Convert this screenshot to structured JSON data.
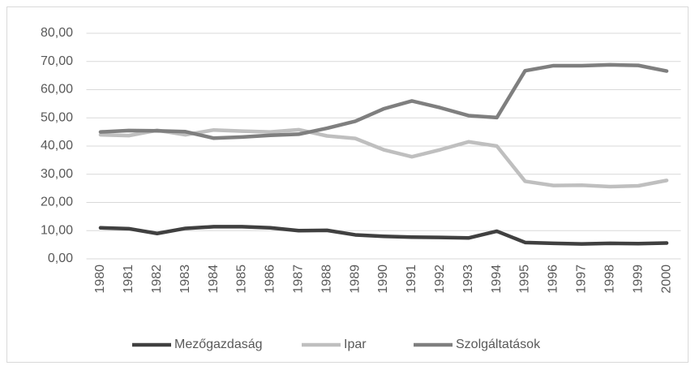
{
  "chart_data": {
    "type": "line",
    "categories": [
      "1980",
      "1981",
      "1982",
      "1983",
      "1984",
      "1985",
      "1986",
      "1987",
      "1988",
      "1989",
      "1990",
      "1991",
      "1992",
      "1993",
      "1994",
      "1995",
      "1996",
      "1997",
      "1998",
      "1999",
      "2000"
    ],
    "series": [
      {
        "name": "Mezőgazdaság",
        "color": "#404040",
        "values": [
          11,
          10.7,
          9,
          10.8,
          11.4,
          11.4,
          11,
          10,
          10.1,
          8.5,
          8,
          7.7,
          7.6,
          7.4,
          9.8,
          5.8,
          5.5,
          5.3,
          5.5,
          5.4,
          5.6
        ]
      },
      {
        "name": "Ipar",
        "color": "#bfbfbf",
        "values": [
          44,
          43.7,
          45.6,
          44,
          45.7,
          45.3,
          45,
          45.8,
          43.6,
          42.7,
          38.7,
          36.2,
          38.7,
          41.5,
          40,
          27.5,
          26,
          26.1,
          25.6,
          25.9,
          27.8
        ]
      },
      {
        "name": "Szolgáltatások",
        "color": "#7f7f7f",
        "values": [
          45,
          45.5,
          45.4,
          45.1,
          42.8,
          43.2,
          43.8,
          44.2,
          46.3,
          48.8,
          53.2,
          56,
          53.6,
          50.8,
          50.1,
          66.7,
          68.5,
          68.5,
          68.8,
          68.6,
          66.6
        ]
      }
    ],
    "ylim": [
      0,
      80
    ],
    "yticks": [
      {
        "value": 0,
        "label": "0,00"
      },
      {
        "value": 10,
        "label": "10,00"
      },
      {
        "value": 20,
        "label": "20,00"
      },
      {
        "value": 30,
        "label": "30,00"
      },
      {
        "value": 40,
        "label": "40,00"
      },
      {
        "value": 50,
        "label": "50,00"
      },
      {
        "value": 60,
        "label": "60,00"
      },
      {
        "value": 70,
        "label": "70,00"
      },
      {
        "value": 80,
        "label": "80,00"
      }
    ],
    "grid": true,
    "legend": "bottom"
  }
}
